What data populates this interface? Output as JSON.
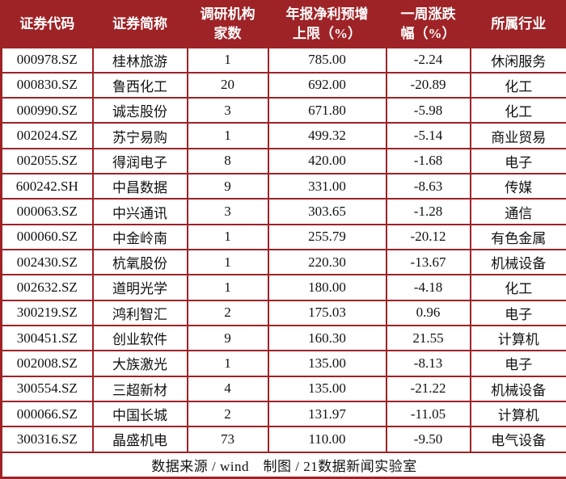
{
  "colors": {
    "accent": "#9e2327",
    "cell_bg": "#ffffff",
    "text": "#111111",
    "header_text": "#ffffff"
  },
  "chart_data": {
    "type": "table",
    "columns": [
      "证券代码",
      "证券简称",
      "调研机构\n家数",
      "年报净利预增\n上限（%）",
      "一周涨跌\n幅（%）",
      "所属行业"
    ],
    "column_ids": [
      "code",
      "name",
      "institution-count",
      "profit-forecast-upper",
      "weekly-change",
      "industry"
    ],
    "rows": [
      [
        "000978.SZ",
        "桂林旅游",
        "1",
        "785.00",
        "-2.24",
        "休闲服务"
      ],
      [
        "000830.SZ",
        "鲁西化工",
        "20",
        "692.00",
        "-20.89",
        "化工"
      ],
      [
        "000990.SZ",
        "诚志股份",
        "3",
        "671.80",
        "-5.98",
        "化工"
      ],
      [
        "002024.SZ",
        "苏宁易购",
        "1",
        "499.32",
        "-5.14",
        "商业贸易"
      ],
      [
        "002055.SZ",
        "得润电子",
        "8",
        "420.00",
        "-1.68",
        "电子"
      ],
      [
        "600242.SH",
        "中昌数据",
        "9",
        "331.00",
        "-8.63",
        "传媒"
      ],
      [
        "000063.SZ",
        "中兴通讯",
        "3",
        "303.65",
        "-1.28",
        "通信"
      ],
      [
        "000060.SZ",
        "中金岭南",
        "1",
        "255.79",
        "-20.12",
        "有色金属"
      ],
      [
        "002430.SZ",
        "杭氧股份",
        "1",
        "220.30",
        "-13.67",
        "机械设备"
      ],
      [
        "002632.SZ",
        "道明光学",
        "1",
        "180.00",
        "-4.18",
        "化工"
      ],
      [
        "300219.SZ",
        "鸿利智汇",
        "2",
        "175.03",
        "0.96",
        "电子"
      ],
      [
        "300451.SZ",
        "创业软件",
        "9",
        "160.30",
        "21.55",
        "计算机"
      ],
      [
        "002008.SZ",
        "大族激光",
        "1",
        "135.00",
        "-8.13",
        "电子"
      ],
      [
        "300554.SZ",
        "三超新材",
        "4",
        "135.00",
        "-21.22",
        "机械设备"
      ],
      [
        "000066.SZ",
        "中国长城",
        "2",
        "131.97",
        "-11.05",
        "计算机"
      ],
      [
        "300316.SZ",
        "晶盛机电",
        "73",
        "110.00",
        "-9.50",
        "电气设备"
      ]
    ],
    "footer": "数据来源 / wind　制图 / 21数据新闻实验室"
  }
}
